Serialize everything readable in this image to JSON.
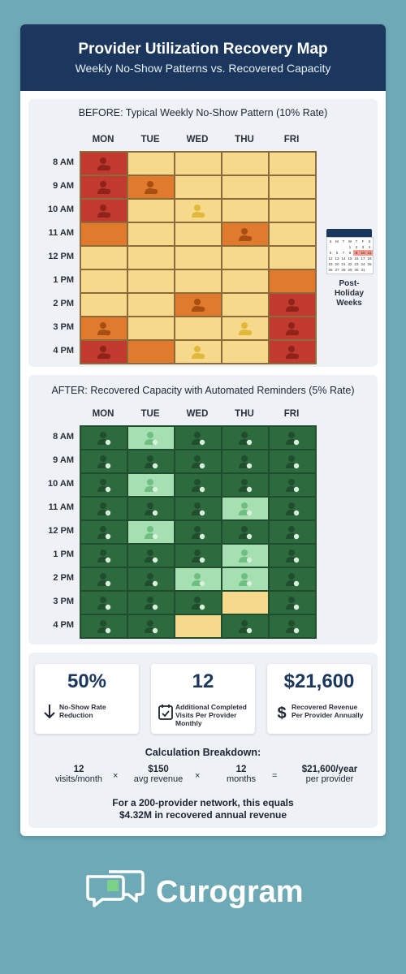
{
  "header": {
    "title": "Provider Utilization Recovery Map",
    "subtitle": "Weekly No-Show Patterns vs. Recovered Capacity"
  },
  "days": [
    "MON",
    "TUE",
    "WED",
    "THU",
    "FRI"
  ],
  "times": [
    "8 AM",
    "9 AM",
    "10 AM",
    "11 AM",
    "12 PM",
    "1 PM",
    "2 PM",
    "3 PM",
    "4 PM"
  ],
  "before": {
    "title": "BEFORE: Typical Weekly No-Show Pattern (10% Rate)",
    "colors": {
      "red": "#c23a2e",
      "orange": "#e07a2c",
      "yellow": "#f6d98a"
    },
    "grid": [
      [
        "red",
        "yellow",
        "yellow",
        "yellow",
        "yellow"
      ],
      [
        "red",
        "orange",
        "yellow",
        "yellow",
        "yellow"
      ],
      [
        "red",
        "yellow",
        "yellow",
        "yellow",
        "yellow"
      ],
      [
        "orange",
        "yellow",
        "yellow",
        "orange",
        "yellow"
      ],
      [
        "yellow",
        "yellow",
        "yellow",
        "yellow",
        "yellow"
      ],
      [
        "yellow",
        "yellow",
        "yellow",
        "yellow",
        "orange"
      ],
      [
        "yellow",
        "yellow",
        "orange",
        "yellow",
        "red"
      ],
      [
        "orange",
        "yellow",
        "yellow",
        "yellow",
        "red"
      ],
      [
        "red",
        "orange",
        "yellow",
        "yellow",
        "red"
      ]
    ],
    "icons": [
      [
        1,
        0,
        0,
        0,
        0
      ],
      [
        1,
        1,
        0,
        0,
        0
      ],
      [
        1,
        0,
        1,
        0,
        0
      ],
      [
        0,
        0,
        0,
        1,
        0
      ],
      [
        0,
        0,
        0,
        0,
        0
      ],
      [
        0,
        0,
        0,
        0,
        0
      ],
      [
        0,
        0,
        1,
        0,
        1
      ],
      [
        1,
        0,
        0,
        1,
        1
      ],
      [
        1,
        0,
        1,
        0,
        1
      ]
    ]
  },
  "calendar": {
    "label": "Post-Holiday Weeks",
    "weekdays": [
      "S",
      "M",
      "T",
      "W",
      "T",
      "F",
      "S"
    ],
    "days": [
      "",
      "",
      "",
      "1",
      "2",
      "3",
      "4",
      "5",
      "6",
      "7",
      "8",
      "9",
      "10",
      "11",
      "12",
      "13",
      "14",
      "15",
      "16",
      "17",
      "18",
      "19",
      "20",
      "21",
      "22",
      "23",
      "24",
      "25",
      "26",
      "27",
      "28",
      "29",
      "30",
      "31",
      ""
    ],
    "highlighted": [
      "9",
      "10",
      "11"
    ]
  },
  "after": {
    "title": "AFTER: Recovered Capacity with Automated Reminders (5% Rate)",
    "colors": {
      "dark": "#2d6b3e",
      "light": "#a6dfb2",
      "yellow": "#f6d98a"
    },
    "grid": [
      [
        "dark",
        "light",
        "dark",
        "dark",
        "dark"
      ],
      [
        "dark",
        "dark",
        "dark",
        "dark",
        "dark"
      ],
      [
        "dark",
        "light",
        "dark",
        "dark",
        "dark"
      ],
      [
        "dark",
        "dark",
        "dark",
        "light",
        "dark"
      ],
      [
        "dark",
        "light",
        "dark",
        "dark",
        "dark"
      ],
      [
        "dark",
        "dark",
        "dark",
        "light",
        "dark"
      ],
      [
        "dark",
        "dark",
        "light",
        "light",
        "dark"
      ],
      [
        "dark",
        "dark",
        "dark",
        "yellow",
        "dark"
      ],
      [
        "dark",
        "dark",
        "yellow",
        "dark",
        "dark"
      ]
    ]
  },
  "stats": [
    {
      "value": "50%",
      "label": "No-Show Rate Reduction",
      "icon": "down-arrow-icon"
    },
    {
      "value": "12",
      "label": "Additional Completed Visits Per Provider Monthly",
      "icon": "calendar-check-icon"
    },
    {
      "value": "$21,600",
      "label": "Recovered Revenue Per Provider Annually",
      "icon": "dollar-icon"
    }
  ],
  "calc": {
    "title": "Calculation Breakdown:",
    "items": [
      {
        "value": "12",
        "unit": "visits/month"
      },
      {
        "value": "$150",
        "unit": "avg revenue"
      },
      {
        "value": "12",
        "unit": "months"
      },
      {
        "value": "$21,600/year",
        "unit": "per provider"
      }
    ],
    "ops": [
      "×",
      "×",
      "="
    ],
    "network_line1": "For a 200-provider network, this equals",
    "network_line2": "$4.32M in recovered annual revenue"
  },
  "brand": {
    "name": "Curogram",
    "accent": "#7bd389"
  }
}
